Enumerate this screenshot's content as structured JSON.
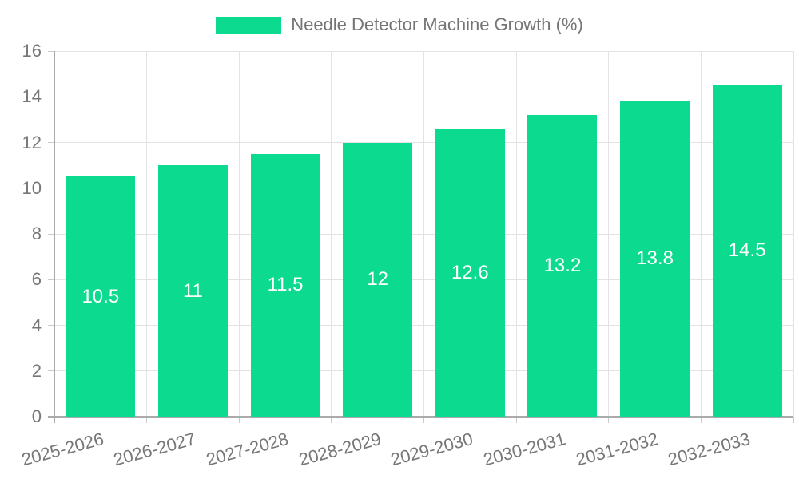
{
  "legend": {
    "label": "Needle Detector Machine Growth (%)"
  },
  "chart_data": {
    "type": "bar",
    "title": "Needle Detector Machine Growth (%)",
    "categories": [
      "2025-2026",
      "2026-2027",
      "2027-2028",
      "2028-2029",
      "2029-2030",
      "2030-2031",
      "2031-2032",
      "2032-2033"
    ],
    "values": [
      10.5,
      11,
      11.5,
      12,
      12.6,
      13.2,
      13.8,
      14.5
    ],
    "value_labels": [
      "10.5",
      "11",
      "11.5",
      "12",
      "12.6",
      "13.2",
      "13.8",
      "14.5"
    ],
    "xlabel": "",
    "ylabel": "",
    "ylim": [
      0,
      16
    ],
    "yticks": [
      0,
      2,
      4,
      6,
      8,
      10,
      12,
      14,
      16
    ],
    "grid": true,
    "legend_position": "top",
    "x_tick_rotation_deg": -15,
    "value_label_position": "inside-center"
  },
  "colors": {
    "bar": "#0cda8f",
    "grid": "#e3e3e3",
    "tick": "#c9c9c9",
    "axis": "#aaaaaa",
    "tick_label": "#777777",
    "legend_text": "#757575",
    "value_label": "#ffffff",
    "background": "#ffffff"
  }
}
